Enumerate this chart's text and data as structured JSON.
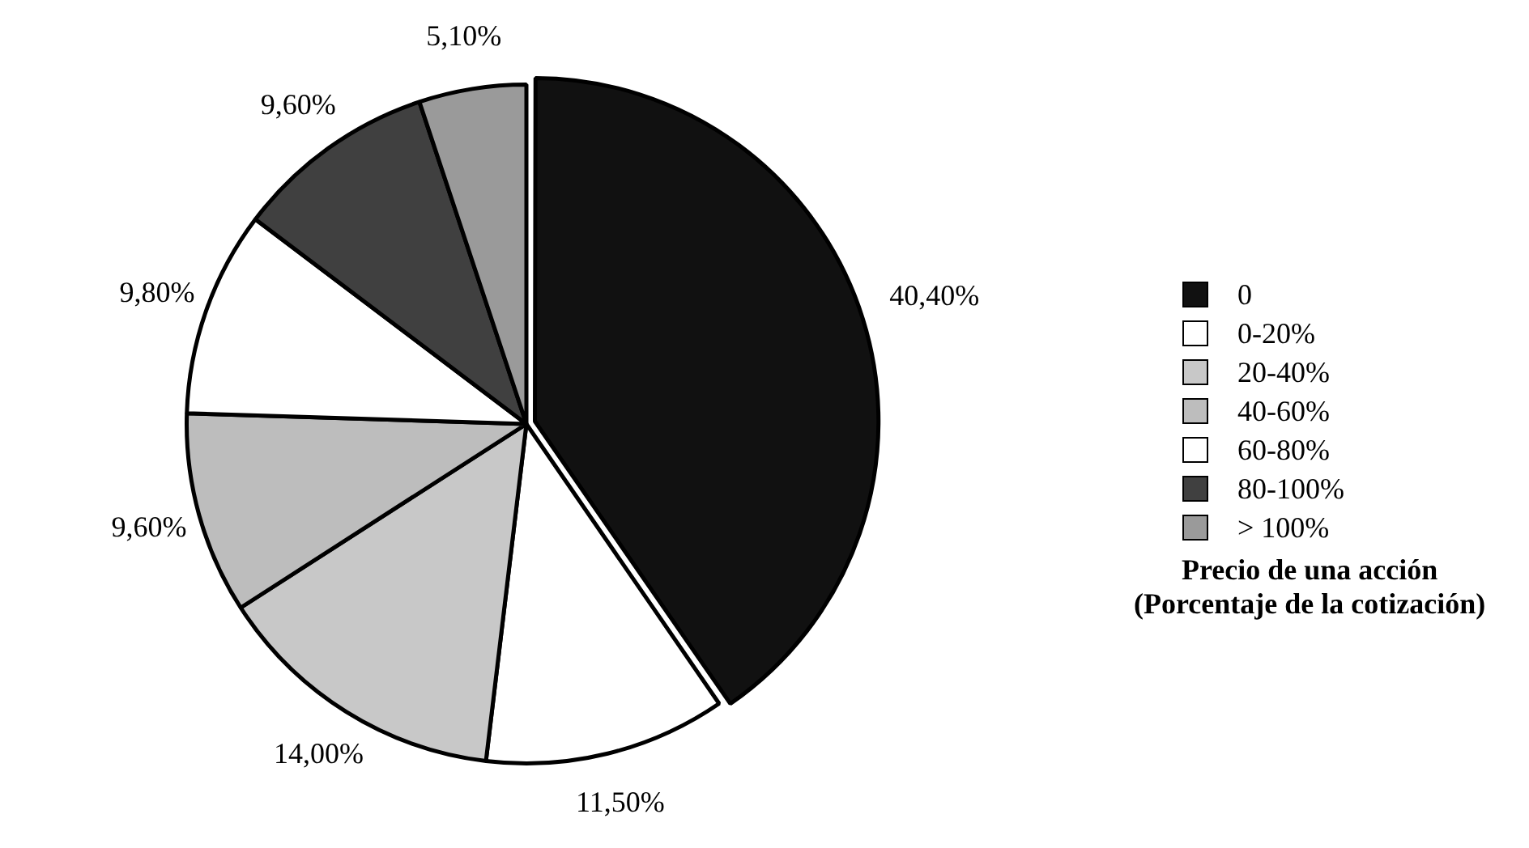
{
  "chart_data": {
    "type": "pie",
    "categories": [
      "0",
      "0-20%",
      "20-40%",
      "40-60%",
      "60-80%",
      "80-100%",
      "> 100%"
    ],
    "values": [
      40.4,
      11.5,
      14.0,
      9.6,
      9.8,
      9.6,
      5.1
    ],
    "value_labels": [
      "40,40%",
      "11,50%",
      "14,00%",
      "9,60%",
      "9,80%",
      "9,60%",
      "5,10%"
    ],
    "colors": [
      "#111111",
      "#ffffff",
      "#c8c8c8",
      "#bdbdbd",
      "#ffffff",
      "#404040",
      "#9a9a9a"
    ],
    "legend": "right",
    "legend_title": "Precio de una acción\n(Porcentaje de la cotización)"
  }
}
